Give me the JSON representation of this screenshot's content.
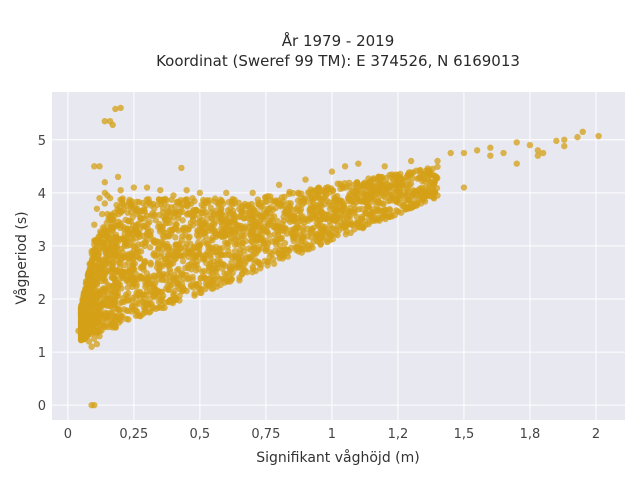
{
  "chart_data": {
    "type": "scatter",
    "title": "År 1979 - 2019",
    "subtitle": "Koordinat (Sweref 99 TM): E 374526, N 6169013",
    "xlabel": "Signifikant våghöjd (m)",
    "ylabel": "Vågperiod (s)",
    "xlim": [
      -0.06,
      2.11
    ],
    "ylim": [
      -0.28,
      5.9
    ],
    "x_ticks": [
      0,
      0.25,
      0.5,
      0.75,
      1,
      1.25,
      1.5,
      1.75,
      2
    ],
    "x_tick_labels": [
      "0",
      "0,25",
      "0,5",
      "0,75",
      "1",
      "1,2",
      "1,5",
      "1,8",
      "2"
    ],
    "y_ticks": [
      0,
      1,
      2,
      3,
      4,
      5
    ],
    "y_tick_labels": [
      "0",
      "1",
      "2",
      "3",
      "4",
      "5"
    ],
    "grid": true,
    "colors": {
      "marker": "#D4A017",
      "plot_bg": "#E8E8F0",
      "grid": "#ffffff"
    },
    "series": [
      {
        "points": [
          [
            0.09,
            0.0
          ],
          [
            0.1,
            0.0
          ],
          [
            0.04,
            1.4
          ],
          [
            0.05,
            1.35
          ],
          [
            0.06,
            1.5
          ],
          [
            0.07,
            1.3
          ],
          [
            0.08,
            1.2
          ],
          [
            0.09,
            1.1
          ],
          [
            0.1,
            1.25
          ],
          [
            0.11,
            1.15
          ],
          [
            0.12,
            1.3
          ],
          [
            0.07,
            2.2
          ],
          [
            0.08,
            2.5
          ],
          [
            0.09,
            2.9
          ],
          [
            0.1,
            3.1
          ],
          [
            0.1,
            3.4
          ],
          [
            0.11,
            3.7
          ],
          [
            0.12,
            3.9
          ],
          [
            0.13,
            3.6
          ],
          [
            0.14,
            3.8
          ],
          [
            0.15,
            3.95
          ],
          [
            0.1,
            4.5
          ],
          [
            0.12,
            4.5
          ],
          [
            0.14,
            4.0
          ],
          [
            0.15,
            3.6
          ],
          [
            0.16,
            3.9
          ],
          [
            0.19,
            4.3
          ],
          [
            0.14,
            4.2
          ],
          [
            0.14,
            5.35
          ],
          [
            0.16,
            5.35
          ],
          [
            0.17,
            5.28
          ],
          [
            0.18,
            5.58
          ],
          [
            0.2,
            5.6
          ],
          [
            0.13,
            1.6
          ],
          [
            0.16,
            1.6
          ],
          [
            0.2,
            1.65
          ],
          [
            0.25,
            1.8
          ],
          [
            0.3,
            1.9
          ],
          [
            0.35,
            2.0
          ],
          [
            0.4,
            2.1
          ],
          [
            0.45,
            2.15
          ],
          [
            0.5,
            2.2
          ],
          [
            0.55,
            2.3
          ],
          [
            0.6,
            2.35
          ],
          [
            0.65,
            2.4
          ],
          [
            0.7,
            2.6
          ],
          [
            0.8,
            2.85
          ],
          [
            0.9,
            3.05
          ],
          [
            1.0,
            3.2
          ],
          [
            1.1,
            3.4
          ],
          [
            1.2,
            3.6
          ],
          [
            1.3,
            3.8
          ],
          [
            1.4,
            3.95
          ],
          [
            1.5,
            4.1
          ],
          [
            0.2,
            4.05
          ],
          [
            0.25,
            4.1
          ],
          [
            0.3,
            4.1
          ],
          [
            0.35,
            4.05
          ],
          [
            0.4,
            3.95
          ],
          [
            0.45,
            4.05
          ],
          [
            0.5,
            4.0
          ],
          [
            0.6,
            4.0
          ],
          [
            0.7,
            4.0
          ],
          [
            0.8,
            4.15
          ],
          [
            0.9,
            4.25
          ],
          [
            1.0,
            4.4
          ],
          [
            1.05,
            4.5
          ],
          [
            1.1,
            4.55
          ],
          [
            1.2,
            4.5
          ],
          [
            1.3,
            4.6
          ],
          [
            0.43,
            4.47
          ],
          [
            1.4,
            4.6
          ],
          [
            1.45,
            4.75
          ],
          [
            1.5,
            4.75
          ],
          [
            1.55,
            4.8
          ],
          [
            1.6,
            4.85
          ],
          [
            1.65,
            4.75
          ],
          [
            1.7,
            4.95
          ],
          [
            1.75,
            4.9
          ],
          [
            1.78,
            4.8
          ],
          [
            1.8,
            4.75
          ],
          [
            1.78,
            4.7
          ],
          [
            1.85,
            4.98
          ],
          [
            1.88,
            5.0
          ],
          [
            1.88,
            4.88
          ],
          [
            1.95,
            5.15
          ],
          [
            2.01,
            5.07
          ],
          [
            1.93,
            5.05
          ],
          [
            1.6,
            4.7
          ],
          [
            1.7,
            4.55
          ],
          [
            0.48,
            2.1
          ],
          [
            0.55,
            2.2
          ],
          [
            0.65,
            2.35
          ],
          [
            0.62,
            2.38
          ]
        ]
      }
    ]
  }
}
